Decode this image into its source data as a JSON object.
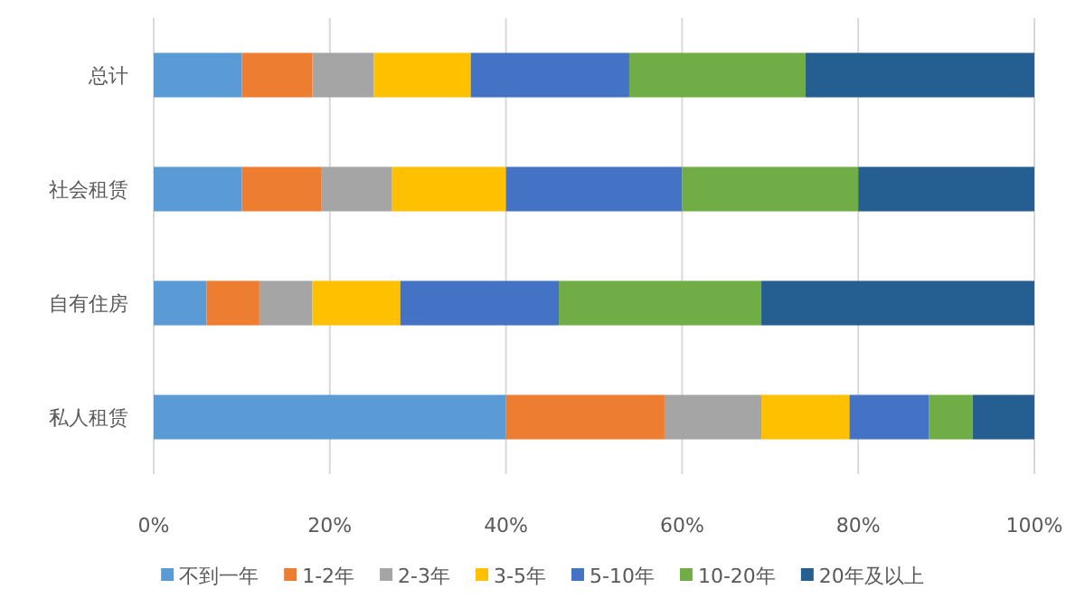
{
  "chart_data": {
    "type": "bar",
    "orientation": "horizontal",
    "stacked": true,
    "grid": "x",
    "legend": "bottom",
    "categories": [
      "总计",
      "社会租赁",
      "自有住房",
      "私人租赁"
    ],
    "series": [
      {
        "name": "不到一年",
        "color": "#5b9bd5",
        "values": [
          10,
          10,
          6,
          40
        ]
      },
      {
        "name": "1-2年",
        "color": "#ed7d31",
        "values": [
          8,
          9,
          6,
          18
        ]
      },
      {
        "name": "2-3年",
        "color": "#a5a5a5",
        "values": [
          7,
          8,
          6,
          11
        ]
      },
      {
        "name": "3-5年",
        "color": "#ffc000",
        "values": [
          11,
          13,
          10,
          10
        ]
      },
      {
        "name": "5-10年",
        "color": "#4472c4",
        "values": [
          18,
          20,
          18,
          9
        ]
      },
      {
        "name": "10-20年",
        "color": "#70ad47",
        "values": [
          20,
          20,
          23,
          5
        ]
      },
      {
        "name": "20年及以上",
        "color": "#255e91",
        "values": [
          26,
          20,
          31,
          7
        ]
      }
    ],
    "xlim": [
      0,
      100
    ],
    "xticks": [
      {
        "value": 0,
        "label": "0%"
      },
      {
        "value": 20,
        "label": "20%"
      },
      {
        "value": 40,
        "label": "40%"
      },
      {
        "value": 60,
        "label": "60%"
      },
      {
        "value": 80,
        "label": "80%"
      },
      {
        "value": 100,
        "label": "100%"
      }
    ]
  }
}
